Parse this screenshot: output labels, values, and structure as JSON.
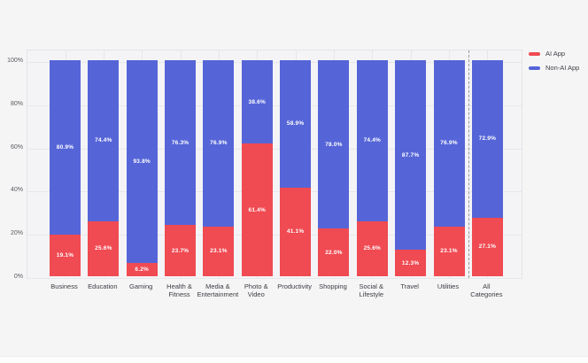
{
  "page": {
    "background_color": "#f5f5f6"
  },
  "chart_data": {
    "type": "bar",
    "stacked": true,
    "orientation": "vertical",
    "title": "",
    "categories": [
      "Business",
      "Education",
      "Gaming",
      "Health & Fitness",
      "Media & Entertainment",
      "Photo & Video",
      "Productivity",
      "Shopping",
      "Social & Lifestyle",
      "Travel",
      "Utilities",
      "All Categories"
    ],
    "x_tick_labels": [
      "Business",
      "Education",
      "Gaming",
      "Health &\nFitness",
      "Media &\nEntertainment",
      "Photo &\nVideo",
      "Productivity",
      "Shopping",
      "Social &\nLifestyle",
      "Travel",
      "Utilities",
      "All\nCategories"
    ],
    "series": [
      {
        "name": "AI App",
        "color": "#f04a52",
        "stack_position": "bottom",
        "values": [
          19.1,
          25.6,
          6.2,
          23.7,
          23.1,
          61.4,
          41.1,
          22.0,
          25.6,
          12.3,
          23.1,
          27.1
        ]
      },
      {
        "name": "Non-AI App",
        "color": "#5565d8",
        "stack_position": "top",
        "values": [
          80.9,
          74.4,
          93.8,
          76.3,
          76.9,
          38.6,
          58.9,
          78.0,
          74.4,
          87.7,
          76.9,
          72.9
        ]
      }
    ],
    "value_label_suffix": "%",
    "y_ticks": {
      "values": [
        0,
        20,
        40,
        60,
        80,
        100
      ],
      "labels": [
        "0%",
        "20%",
        "40%",
        "60%",
        "80%",
        "100%"
      ]
    },
    "ylim": [
      0,
      105
    ],
    "grid": true,
    "legend": {
      "position": "top-right"
    },
    "separator_after_category_index": 10
  }
}
